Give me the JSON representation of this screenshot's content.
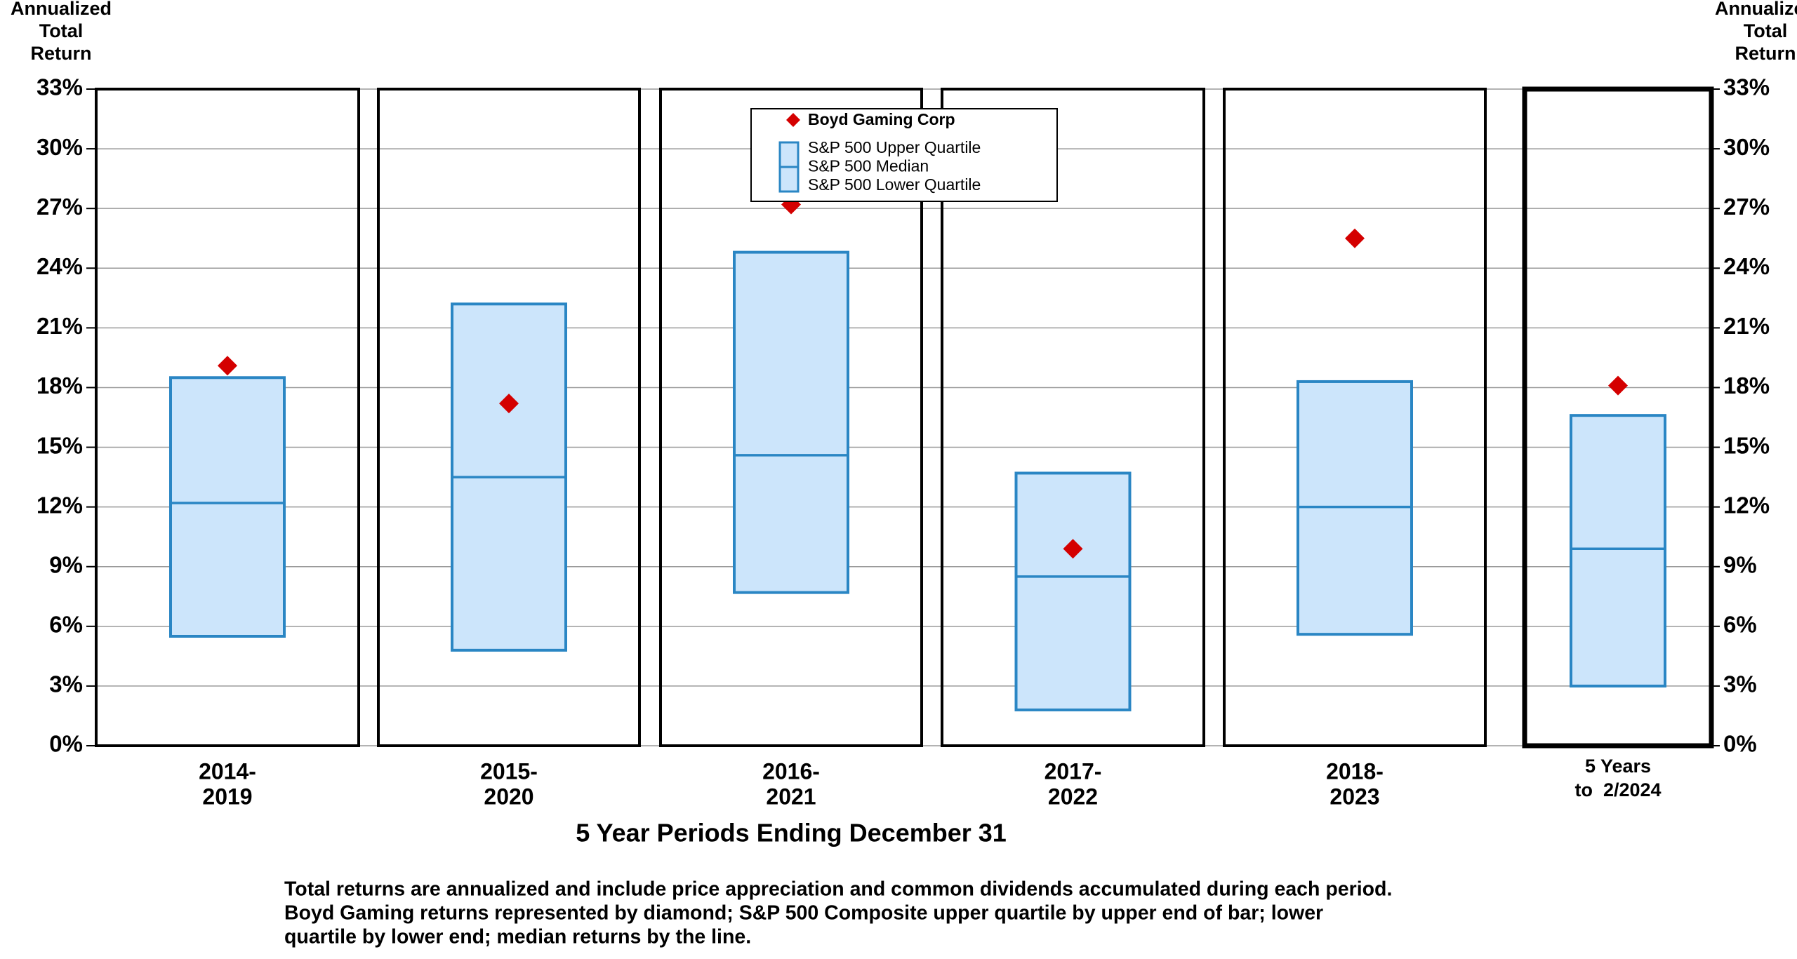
{
  "chart_data": {
    "type": "range_bar",
    "y_axis_title": [
      "Annualized",
      "Total",
      "Return"
    ],
    "x_axis_title": "5 Year Periods Ending December 31",
    "categories": [
      [
        "2014-",
        "2019"
      ],
      [
        "2015-",
        "2020"
      ],
      [
        "2016-",
        "2021"
      ],
      [
        "2017-",
        "2022"
      ],
      [
        "2018-",
        "2023"
      ],
      [
        "5 Years",
        "to  2/2024"
      ]
    ],
    "series": [
      {
        "name": "S&P 500 Upper Quartile",
        "color": "#2a86c4",
        "fill": "#cce5fb",
        "values": [
          18.5,
          22.2,
          24.8,
          13.7,
          18.3,
          16.6
        ]
      },
      {
        "name": "S&P 500 Median",
        "color": "#2a86c4",
        "values": [
          12.2,
          13.5,
          14.6,
          8.5,
          12.0,
          9.9
        ]
      },
      {
        "name": "S&P 500 Lower Quartile",
        "color": "#2a86c4",
        "values": [
          5.5,
          4.8,
          7.7,
          1.8,
          5.6,
          3.0
        ]
      },
      {
        "name": "Boyd Gaming Corp",
        "color": "#d40000",
        "values": [
          19.1,
          17.2,
          27.2,
          9.9,
          25.5,
          18.1
        ]
      }
    ],
    "ylim": [
      0,
      33
    ],
    "yticks": [
      {
        "value": 0,
        "label": "0%"
      },
      {
        "value": 3,
        "label": "3%"
      },
      {
        "value": 6,
        "label": "6%"
      },
      {
        "value": 9,
        "label": "9%"
      },
      {
        "value": 12,
        "label": "12%"
      },
      {
        "value": 15,
        "label": "15%"
      },
      {
        "value": 18,
        "label": "18%"
      },
      {
        "value": 21,
        "label": "21%"
      },
      {
        "value": 24,
        "label": "24%"
      },
      {
        "value": 27,
        "label": "27%"
      },
      {
        "value": 30,
        "label": "30%"
      },
      {
        "value": 33,
        "label": "33%"
      }
    ],
    "grid": true,
    "footnote": [
      "Total returns are annualized and include price appreciation and common dividends accumulated during each period.",
      "Boyd Gaming returns represented by diamond; S&P 500 Composite upper quartile by upper end of bar; lower",
      "quartile by lower end; median returns by the line."
    ]
  }
}
